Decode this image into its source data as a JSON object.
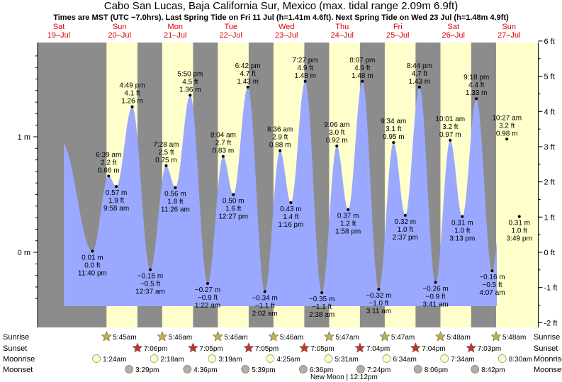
{
  "title": "Cabo San Lucas, Baja California Sur, Mexico (max. tidal range 2.09m 6.9ft)",
  "subtitle": "Times are MST (UTC −7.0hrs). Last Spring Tide on Fri 11 Jul (h=1.41m 4.6ft). Next Spring Tide on Wed 23 Jul (h=1.48m 4.9ft)",
  "colors": {
    "night": "#8c8c8c",
    "day": "#ffffcc",
    "tide": "#9aa8ff",
    "dayname": "#e00000",
    "sunrise": "#c8b040",
    "sunset": "#d03020",
    "moon": "#ffffc0",
    "moonset": "#b0b0a0"
  },
  "chart_data": {
    "type": "area",
    "y_left": {
      "unit": "m",
      "ticks": [
        {
          "v": 0,
          "label": "0 m"
        },
        {
          "v": 1,
          "label": "1 m"
        }
      ]
    },
    "y_right": {
      "unit": "ft",
      "ticks": [
        "-2 ft",
        "-1 ft",
        "0 ft",
        "1 ft",
        "2 ft",
        "3 ft",
        "4 ft",
        "5 ft",
        "6 ft"
      ]
    },
    "days": [
      {
        "dow": "Sat",
        "date": "19–Jul"
      },
      {
        "dow": "Sun",
        "date": "20–Jul"
      },
      {
        "dow": "Mon",
        "date": "21–Jul"
      },
      {
        "dow": "Tue",
        "date": "22–Jul"
      },
      {
        "dow": "Wed",
        "date": "23–Jul"
      },
      {
        "dow": "Thu",
        "date": "24–Jul"
      },
      {
        "dow": "Fri",
        "date": "25–Jul"
      },
      {
        "dow": "Sat",
        "date": "26–Jul"
      },
      {
        "dow": "Sun",
        "date": "27–Jul"
      }
    ],
    "daylight": [
      {
        "sunrise": "05:45",
        "sunset": "19:06"
      },
      {
        "sunrise": "05:46",
        "sunset": "19:05"
      },
      {
        "sunrise": "05:46",
        "sunset": "19:05"
      },
      {
        "sunrise": "05:46",
        "sunset": "19:05"
      },
      {
        "sunrise": "05:47",
        "sunset": "19:04"
      },
      {
        "sunrise": "05:47",
        "sunset": "19:04"
      },
      {
        "sunrise": "05:48",
        "sunset": "19:03"
      },
      {
        "sunrise": "05:48",
        "sunset": ""
      }
    ],
    "tides": [
      {
        "day": 0,
        "time": "23:40",
        "time_label": "11:40 pm",
        "m": 0.01,
        "m_label": "0.01 m",
        "ft_label": "0.0 ft",
        "type": "low"
      },
      {
        "day": 1,
        "time": "06:39",
        "time_label": "6:39 am",
        "m": 0.66,
        "m_label": "0.66 m",
        "ft_label": "2.2 ft",
        "type": "high"
      },
      {
        "day": 1,
        "time": "09:58",
        "time_label": "9:58 am",
        "m": 0.57,
        "m_label": "0.57 m",
        "ft_label": "1.9 ft",
        "type": "low"
      },
      {
        "day": 1,
        "time": "16:49",
        "time_label": "4:49 pm",
        "m": 1.26,
        "m_label": "1.26 m",
        "ft_label": "4.1 ft",
        "type": "high"
      },
      {
        "day": 2,
        "time": "00:37",
        "time_label": "12:37 am",
        "m": -0.15,
        "m_label": "−0.15 m",
        "ft_label": "−0.5 ft",
        "type": "low"
      },
      {
        "day": 2,
        "time": "07:28",
        "time_label": "7:28 am",
        "m": 0.75,
        "m_label": "0.75 m",
        "ft_label": "2.5 ft",
        "type": "high"
      },
      {
        "day": 2,
        "time": "11:26",
        "time_label": "11:26 am",
        "m": 0.56,
        "m_label": "0.56 m",
        "ft_label": "1.8 ft",
        "type": "low"
      },
      {
        "day": 2,
        "time": "17:50",
        "time_label": "5:50 pm",
        "m": 1.36,
        "m_label": "1.36 m",
        "ft_label": "4.5 ft",
        "type": "high"
      },
      {
        "day": 3,
        "time": "01:22",
        "time_label": "1:22 am",
        "m": -0.27,
        "m_label": "−0.27 m",
        "ft_label": "−0.9 ft",
        "type": "low"
      },
      {
        "day": 3,
        "time": "08:04",
        "time_label": "8:04 am",
        "m": 0.83,
        "m_label": "0.83 m",
        "ft_label": "2.7 ft",
        "type": "high"
      },
      {
        "day": 3,
        "time": "12:27",
        "time_label": "12:27 pm",
        "m": 0.5,
        "m_label": "0.50 m",
        "ft_label": "1.6 ft",
        "type": "low"
      },
      {
        "day": 3,
        "time": "18:42",
        "time_label": "6:42 pm",
        "m": 1.43,
        "m_label": "1.43 m",
        "ft_label": "4.7 ft",
        "type": "high"
      },
      {
        "day": 4,
        "time": "02:02",
        "time_label": "2:02 am",
        "m": -0.34,
        "m_label": "−0.34 m",
        "ft_label": "−1.1 ft",
        "type": "low"
      },
      {
        "day": 4,
        "time": "08:36",
        "time_label": "8:36 am",
        "m": 0.88,
        "m_label": "0.88 m",
        "ft_label": "2.9 ft",
        "type": "high"
      },
      {
        "day": 4,
        "time": "13:16",
        "time_label": "1:16 pm",
        "m": 0.43,
        "m_label": "0.43 m",
        "ft_label": "1.4 ft",
        "type": "low"
      },
      {
        "day": 4,
        "time": "19:27",
        "time_label": "7:27 pm",
        "m": 1.48,
        "m_label": "1.48 m",
        "ft_label": "4.9 ft",
        "type": "high"
      },
      {
        "day": 5,
        "time": "02:38",
        "time_label": "2:38 am",
        "m": -0.35,
        "m_label": "−0.35 m",
        "ft_label": "−1.1 ft",
        "type": "low"
      },
      {
        "day": 5,
        "time": "09:06",
        "time_label": "9:06 am",
        "m": 0.92,
        "m_label": "0.92 m",
        "ft_label": "3.0 ft",
        "type": "high"
      },
      {
        "day": 5,
        "time": "13:58",
        "time_label": "1:58 pm",
        "m": 0.37,
        "m_label": "0.37 m",
        "ft_label": "1.2 ft",
        "type": "low"
      },
      {
        "day": 5,
        "time": "20:07",
        "time_label": "8:07 pm",
        "m": 1.48,
        "m_label": "1.48 m",
        "ft_label": "4.9 ft",
        "type": "high"
      },
      {
        "day": 6,
        "time": "03:11",
        "time_label": "3:11 am",
        "m": -0.32,
        "m_label": "−0.32 m",
        "ft_label": "−1.0 ft",
        "type": "low"
      },
      {
        "day": 6,
        "time": "09:34",
        "time_label": "9:34 am",
        "m": 0.95,
        "m_label": "0.95 m",
        "ft_label": "3.1 ft",
        "type": "high"
      },
      {
        "day": 6,
        "time": "14:37",
        "time_label": "2:37 pm",
        "m": 0.32,
        "m_label": "0.32 m",
        "ft_label": "1.0 ft",
        "type": "low"
      },
      {
        "day": 6,
        "time": "20:44",
        "time_label": "8:44 pm",
        "m": 1.43,
        "m_label": "1.43 m",
        "ft_label": "4.7 ft",
        "type": "high"
      },
      {
        "day": 7,
        "time": "03:41",
        "time_label": "3:41 am",
        "m": -0.26,
        "m_label": "−0.26 m",
        "ft_label": "−0.9 ft",
        "type": "low"
      },
      {
        "day": 7,
        "time": "10:01",
        "time_label": "10:01 am",
        "m": 0.97,
        "m_label": "0.97 m",
        "ft_label": "3.2 ft",
        "type": "high"
      },
      {
        "day": 7,
        "time": "15:13",
        "time_label": "3:13 pm",
        "m": 0.31,
        "m_label": "0.31 m",
        "ft_label": "1.0 ft",
        "type": "low"
      },
      {
        "day": 7,
        "time": "21:18",
        "time_label": "9:18 pm",
        "m": 1.33,
        "m_label": "1.33 m",
        "ft_label": "4.4 ft",
        "type": "high"
      },
      {
        "day": 8,
        "time": "04:07",
        "time_label": "4:07 am",
        "m": -0.16,
        "m_label": "−0.16 m",
        "ft_label": "−0.5 ft",
        "type": "low"
      },
      {
        "day": 8,
        "time": "10:27",
        "time_label": "10:27 am",
        "m": 0.98,
        "m_label": "0.98 m",
        "ft_label": "3.2 ft",
        "type": "high"
      },
      {
        "day": 8,
        "time": "15:49",
        "time_label": "3:49 pm",
        "m": 0.31,
        "m_label": "0.31 m",
        "ft_label": "1.0 ft",
        "type": "low"
      }
    ]
  },
  "rows": {
    "labels": [
      "Sunrise",
      "Sunset",
      "Moonrise",
      "Moonset"
    ],
    "sunrise": [
      {
        "day": 1,
        "time": "05:45",
        "label": "5:45am"
      },
      {
        "day": 2,
        "time": "05:46",
        "label": "5:46am"
      },
      {
        "day": 3,
        "time": "05:46",
        "label": "5:46am"
      },
      {
        "day": 4,
        "time": "05:46",
        "label": "5:46am"
      },
      {
        "day": 5,
        "time": "05:47",
        "label": "5:47am"
      },
      {
        "day": 6,
        "time": "05:47",
        "label": "5:47am"
      },
      {
        "day": 7,
        "time": "05:48",
        "label": "5:48am"
      },
      {
        "day": 8,
        "time": "05:48",
        "label": "5:48am"
      }
    ],
    "sunset": [
      {
        "day": 1,
        "time": "19:06",
        "label": "7:06pm"
      },
      {
        "day": 2,
        "time": "19:05",
        "label": "7:05pm"
      },
      {
        "day": 3,
        "time": "19:05",
        "label": "7:05pm"
      },
      {
        "day": 4,
        "time": "19:05",
        "label": "7:05pm"
      },
      {
        "day": 5,
        "time": "19:04",
        "label": "7:04pm"
      },
      {
        "day": 6,
        "time": "19:04",
        "label": "7:04pm"
      },
      {
        "day": 7,
        "time": "19:03",
        "label": "7:03pm"
      }
    ],
    "moonrise": [
      {
        "day": 1,
        "time": "01:24",
        "label": "1:24am"
      },
      {
        "day": 2,
        "time": "02:18",
        "label": "2:18am"
      },
      {
        "day": 3,
        "time": "03:19",
        "label": "3:19am"
      },
      {
        "day": 4,
        "time": "04:25",
        "label": "4:25am"
      },
      {
        "day": 5,
        "time": "05:31",
        "label": "5:31am"
      },
      {
        "day": 6,
        "time": "06:34",
        "label": "6:34am"
      },
      {
        "day": 7,
        "time": "07:34",
        "label": "7:34am"
      },
      {
        "day": 8,
        "time": "08:30",
        "label": "8:30am"
      }
    ],
    "moonset": [
      {
        "day": 1,
        "time": "15:29",
        "label": "3:29pm"
      },
      {
        "day": 2,
        "time": "16:36",
        "label": "4:36pm"
      },
      {
        "day": 3,
        "time": "17:39",
        "label": "5:39pm"
      },
      {
        "day": 4,
        "time": "18:36",
        "label": "6:36pm"
      },
      {
        "day": 5,
        "time": "19:24",
        "label": "7:24pm"
      },
      {
        "day": 6,
        "time": "20:06",
        "label": "8:06pm"
      },
      {
        "day": 7,
        "time": "20:42",
        "label": "8:42pm"
      }
    ],
    "new_moon": {
      "day": 5,
      "time": "12:12",
      "label": "New Moon | 12:12pm"
    }
  }
}
